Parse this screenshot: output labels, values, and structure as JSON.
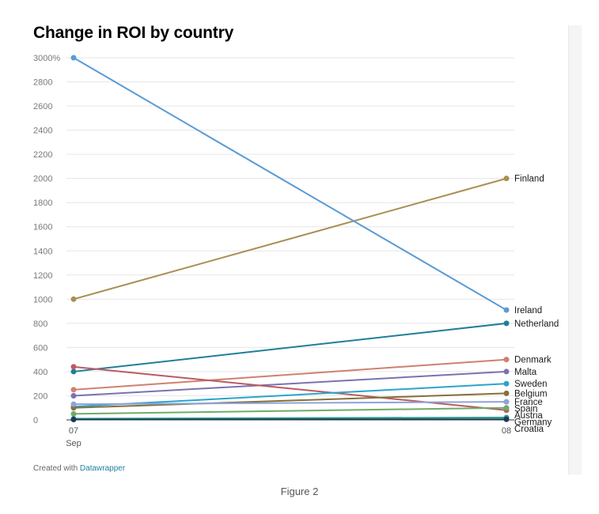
{
  "credit": {
    "prefix": "Created with",
    "link": "Datawrapper"
  },
  "figure_caption": "Figure 2",
  "chart_data": {
    "type": "line",
    "title": "Change in ROI by country",
    "xlabel": "",
    "ylabel": "",
    "x": [
      "07",
      "08"
    ],
    "x_sub": [
      "Sep",
      ""
    ],
    "ylim": [
      0,
      3000
    ],
    "yticks": [
      0,
      200,
      400,
      600,
      800,
      1000,
      1200,
      1400,
      1600,
      1800,
      2000,
      2200,
      2400,
      2600,
      2800,
      3000
    ],
    "ytick_labels": [
      "0",
      "200",
      "400",
      "600",
      "800",
      "1000",
      "1200",
      "1400",
      "1600",
      "1800",
      "2000",
      "2200",
      "2400",
      "2600",
      "2800",
      "3000%"
    ],
    "grid": true,
    "series": [
      {
        "name": "Finland",
        "values": [
          1000,
          2000
        ],
        "color": "#a88f52"
      },
      {
        "name": "Ireland",
        "values": [
          3000,
          910
        ],
        "color": "#5b9bd5"
      },
      {
        "name": "Netherland",
        "values": [
          400,
          800
        ],
        "color": "#1f7f99"
      },
      {
        "name": "Denmark",
        "values": [
          250,
          500
        ],
        "color": "#d08070"
      },
      {
        "name": "Malta",
        "values": [
          200,
          400
        ],
        "color": "#7b72b0"
      },
      {
        "name": "Austria",
        "values": [
          440,
          80
        ],
        "color": "#b85c62"
      },
      {
        "name": "Sweden",
        "values": [
          110,
          300
        ],
        "color": "#2aa5cc"
      },
      {
        "name": "Belgium",
        "values": [
          100,
          220
        ],
        "color": "#86703a"
      },
      {
        "name": "France",
        "values": [
          130,
          150
        ],
        "color": "#8fa3d8"
      },
      {
        "name": "Spain",
        "values": [
          50,
          100
        ],
        "color": "#6fac66"
      },
      {
        "name": "Germany",
        "values": [
          10,
          20
        ],
        "color": "#2e9e8a"
      },
      {
        "name": "Croatia",
        "values": [
          3,
          5
        ],
        "color": "#1b3b5a"
      }
    ],
    "label_order": [
      "Finland",
      "Ireland",
      "Netherland",
      "Denmark",
      "Malta",
      "Austria",
      "Sweden",
      "Belgium",
      "France",
      "Spain",
      "Germany",
      "Croatia"
    ]
  }
}
